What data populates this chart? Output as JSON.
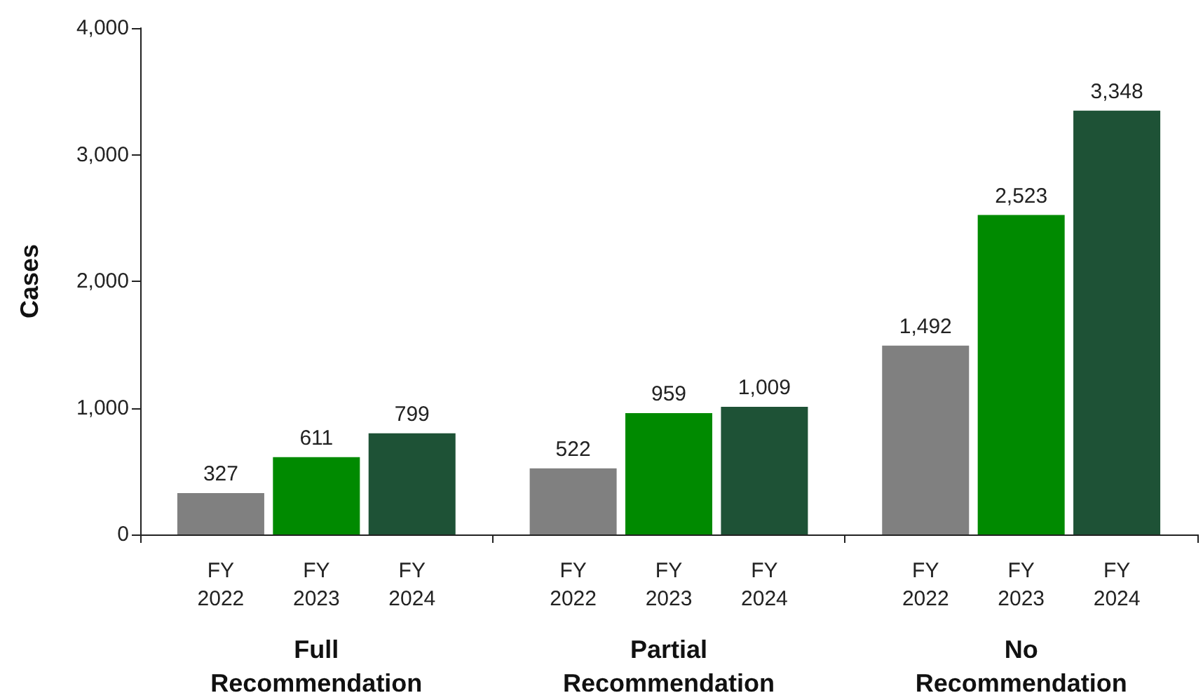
{
  "chart_data": {
    "type": "bar",
    "ylabel": "Cases",
    "categories": [
      "Full Recommendation",
      "Partial Recommendation",
      "No Recommendation"
    ],
    "series": [
      {
        "name": "FY 2022",
        "color": "#808080",
        "values": [
          327,
          522,
          1492
        ],
        "value_labels": [
          "327",
          "522",
          "1,492"
        ]
      },
      {
        "name": "FY 2023",
        "color": "#008a00",
        "values": [
          611,
          959,
          2523
        ],
        "value_labels": [
          "611",
          "959",
          "2,523"
        ]
      },
      {
        "name": "FY 2024",
        "color": "#1e5236",
        "values": [
          799,
          1009,
          3348
        ],
        "value_labels": [
          "799",
          "1,009",
          "3,348"
        ]
      }
    ],
    "ylim": [
      0,
      4000
    ],
    "yticks": [
      0,
      {
        "value": 1000,
        "label": "1,000"
      },
      {
        "value": 2000,
        "label": "2,000"
      },
      {
        "value": 3000,
        "label": "3,000"
      },
      {
        "value": 4000,
        "label": "4,000"
      }
    ],
    "grid": false,
    "legend": false
  }
}
